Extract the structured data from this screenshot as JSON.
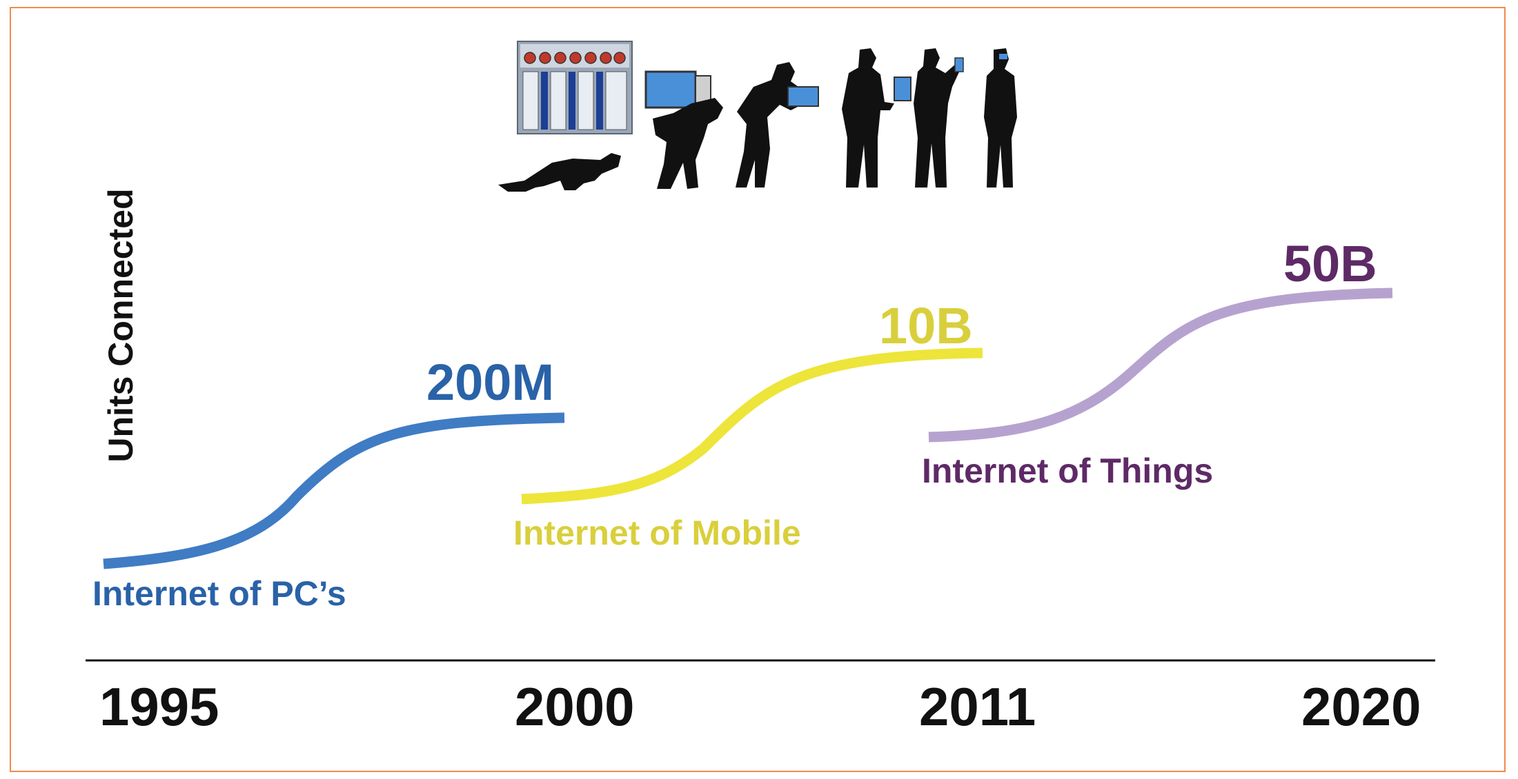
{
  "ylabel": "Units Connected",
  "colors": {
    "border": "#f08a4b",
    "pc": "#3f7cc4",
    "pc_text": "#2a62a8",
    "mobile": "#ede53a",
    "mobile_text": "#d9cf3c",
    "things": "#b6a2cf",
    "things_text": "#5e2a66",
    "baseline": "#111111",
    "year_text": "#111111"
  },
  "eras": [
    {
      "name": "Internet of PC's",
      "label_display": "Internet of PC’s",
      "value": "200M"
    },
    {
      "name": "Internet of Mobile",
      "label_display": "Internet of Mobile",
      "value": "10B"
    },
    {
      "name": "Internet of Things",
      "label_display": "Internet of Things",
      "value": "50B"
    }
  ],
  "years": [
    "1995",
    "2000",
    "2011",
    "2020"
  ],
  "illustration": {
    "description_icon": "evolution-of-computing-silhouettes-icon",
    "stages": [
      "mainframe-crawler",
      "desktop-carrier",
      "laptop-user",
      "tablet-user",
      "phone-user",
      "wearable-user"
    ]
  }
}
